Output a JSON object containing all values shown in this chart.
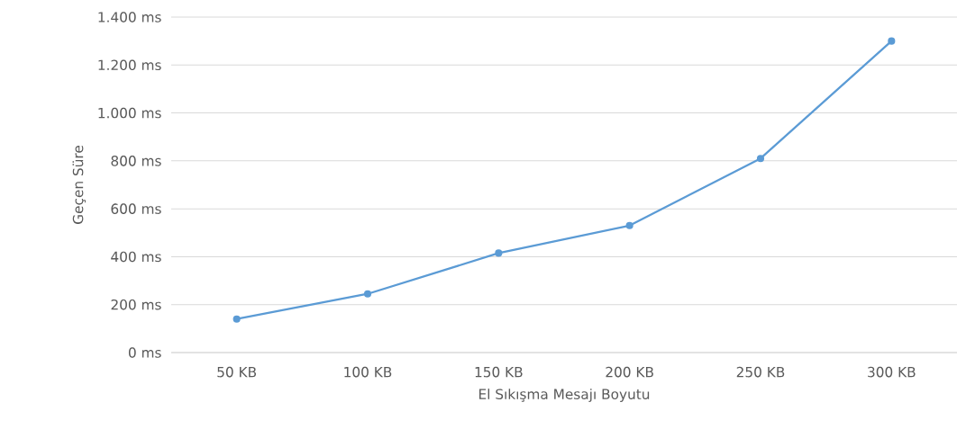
{
  "chart_data": {
    "type": "line",
    "xlabel": "El Sıkışma Mesajı Boyutu",
    "ylabel": "Geçen Süre",
    "categories": [
      "50 KB",
      "100 KB",
      "150 KB",
      "200 KB",
      "250 KB",
      "300 KB"
    ],
    "series": [
      {
        "color": "#5b9bd5",
        "values": [
          140,
          245,
          415,
          530,
          810,
          1300
        ]
      }
    ],
    "ylim": [
      0,
      1400
    ],
    "yticks": [
      {
        "value": 0,
        "label": "0 ms"
      },
      {
        "value": 200,
        "label": "200 ms"
      },
      {
        "value": 400,
        "label": "400 ms"
      },
      {
        "value": 600,
        "label": "600 ms"
      },
      {
        "value": 800,
        "label": "800 ms"
      },
      {
        "value": 1000,
        "label": "1.000 ms"
      },
      {
        "value": 1200,
        "label": "1.200 ms"
      },
      {
        "value": 1400,
        "label": "1.400 ms"
      }
    ],
    "grid": "y",
    "marker": "circle",
    "line_style": "solid"
  }
}
